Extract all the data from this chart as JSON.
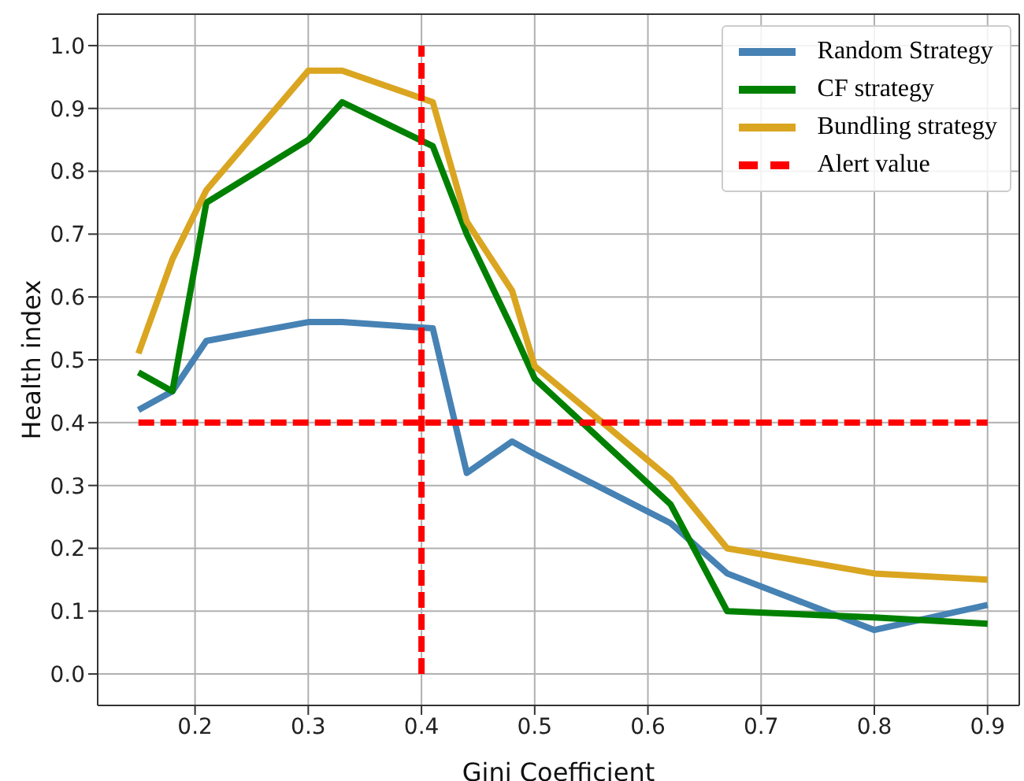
{
  "chart_data": {
    "type": "line",
    "xlabel": "Gini Coefficient",
    "ylabel": "Health index",
    "x": [
      0.15,
      0.18,
      0.21,
      0.3,
      0.33,
      0.41,
      0.44,
      0.48,
      0.5,
      0.62,
      0.67,
      0.8,
      0.9
    ],
    "series": [
      {
        "name": "Random Strategy",
        "color": "#4682b4",
        "values": [
          0.42,
          0.45,
          0.53,
          0.56,
          0.56,
          0.55,
          0.32,
          0.37,
          0.35,
          0.24,
          0.16,
          0.07,
          0.11
        ]
      },
      {
        "name": "CF strategy",
        "color": "#008000",
        "values": [
          0.48,
          0.45,
          0.75,
          0.85,
          0.91,
          0.84,
          0.7,
          0.55,
          0.47,
          0.27,
          0.1,
          0.09,
          0.08
        ]
      },
      {
        "name": "Bundling strategy",
        "color": "#daa520",
        "values": [
          0.51,
          0.66,
          0.77,
          0.96,
          0.96,
          0.91,
          0.72,
          0.61,
          0.49,
          0.31,
          0.2,
          0.16,
          0.15
        ]
      },
      {
        "name": "Alert value",
        "color": "#ff0000",
        "line_style": "dashed",
        "x": [
          0.15,
          0.9
        ],
        "values": [
          0.4,
          0.4
        ]
      },
      {
        "color": "#ff0000",
        "line_style": "dashed",
        "x": [
          0.4,
          0.4
        ],
        "values": [
          0,
          1
        ]
      }
    ],
    "xlim": [
      0.114,
      0.928
    ],
    "ylim": [
      -0.05,
      1.05
    ],
    "xticks": [
      0.2,
      0.3,
      0.4,
      0.5,
      0.6,
      0.7,
      0.8,
      0.9
    ],
    "yticks": [
      {
        "value": 0,
        "label": "0.0"
      },
      0.1,
      0.2,
      0.3,
      0.4,
      0.5,
      0.6,
      0.7,
      0.8,
      0.9,
      {
        "value": 1,
        "label": "1.0"
      }
    ],
    "grid": true,
    "legend": "top right",
    "marker": "none",
    "line_style": "solid"
  }
}
